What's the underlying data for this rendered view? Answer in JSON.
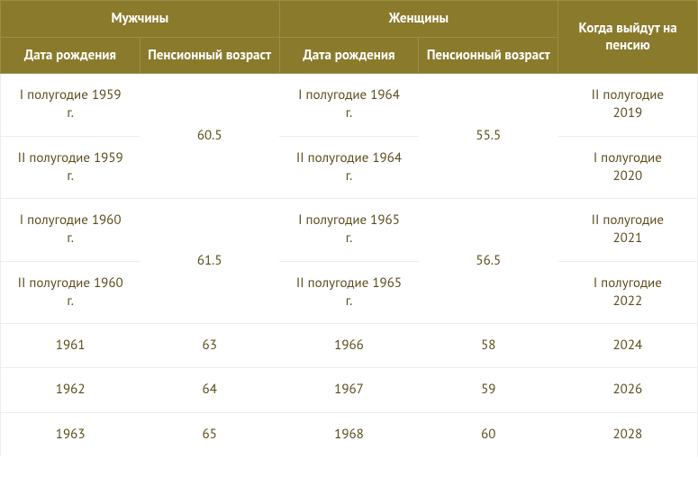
{
  "colors": {
    "header_bg": "#8a7a2b",
    "header_text": "#ffffff",
    "header_border": "#9b8d49",
    "body_text": "#5a4c1b",
    "row_border": "#ececec"
  },
  "header": {
    "men": "Мужчины",
    "women": "Женщины",
    "retire_when": "Когда выйдут на пенсию",
    "birth_date": "Дата рождения",
    "pension_age": "Пенсионный возраст"
  },
  "rows": [
    {
      "m_birth": "I полугодие 1959 г.",
      "m_age": "60.5",
      "m_age_rowspan": 2,
      "w_birth": "I полугодие 1964 г.",
      "w_age": "55.5",
      "w_age_rowspan": 2,
      "retire": "II полугодие 2019"
    },
    {
      "m_birth": "II полугодие 1959 г.",
      "w_birth": "II полугодие 1964 г.",
      "retire": "I полугодие 2020"
    },
    {
      "m_birth": "I полугодие 1960 г.",
      "m_age": "61.5",
      "m_age_rowspan": 2,
      "w_birth": "I полугодие 1965 г.",
      "w_age": "56.5",
      "w_age_rowspan": 2,
      "retire": "II полугодие 2021"
    },
    {
      "m_birth": "II полугодие 1960 г.",
      "w_birth": "II полугодие 1965 г.",
      "retire": "I полугодие 2022"
    },
    {
      "m_birth": "1961",
      "m_age": "63",
      "m_age_rowspan": 1,
      "w_birth": "1966",
      "w_age": "58",
      "w_age_rowspan": 1,
      "retire": "2024"
    },
    {
      "m_birth": "1962",
      "m_age": "64",
      "m_age_rowspan": 1,
      "w_birth": "1967",
      "w_age": "59",
      "w_age_rowspan": 1,
      "retire": "2026"
    },
    {
      "m_birth": "1963",
      "m_age": "65",
      "m_age_rowspan": 1,
      "w_birth": "1968",
      "w_age": "60",
      "w_age_rowspan": 1,
      "retire": "2028"
    }
  ]
}
